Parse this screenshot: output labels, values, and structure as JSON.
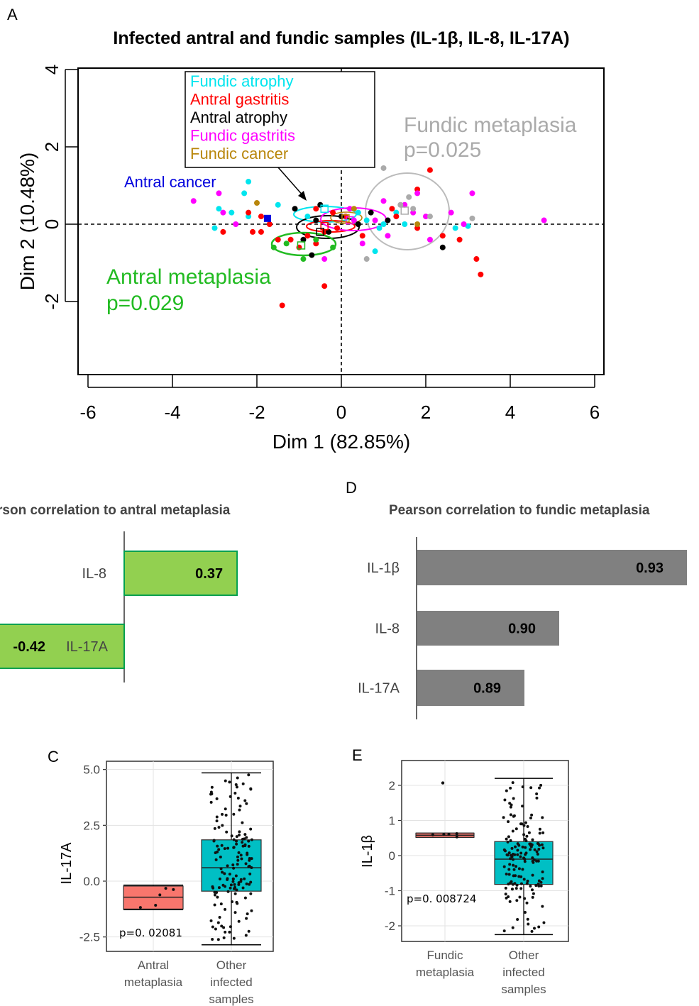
{
  "panel_labels": {
    "a": "A",
    "c": "C",
    "d": "D",
    "e": "E"
  },
  "chart_data": [
    {
      "id": "A",
      "type": "scatter",
      "title": "Infected antral and fundic samples (IL-1β, IL-8, IL-17A)",
      "xlabel": "Dim 1 (82.85%)",
      "ylabel": "Dim 2 (10.48%)",
      "xlim": [
        -6.3,
        6.3
      ],
      "ylim": [
        -3.9,
        4.0
      ],
      "xticks": [
        "-6",
        "-4",
        "-2",
        "0",
        "2",
        "4",
        "6"
      ],
      "yticks": [
        "-2",
        "0",
        "2",
        "4"
      ],
      "legend": {
        "placement": "top-center",
        "entries": [
          {
            "label": "Fundic atrophy",
            "color": "#00e5ee"
          },
          {
            "label": "Antral gastritis",
            "color": "#ff0000"
          },
          {
            "label": "Antral atrophy",
            "color": "#000000"
          },
          {
            "label": "Fundic gastritis",
            "color": "#ff00ff"
          },
          {
            "label": "Fundic cancer",
            "color": "#b8860b"
          }
        ]
      },
      "annotations": {
        "fundic_metaplasia": {
          "label": "Fundic metaplasia",
          "pvalue": "p=0.025",
          "color": "#aaaaaa"
        },
        "antral_metaplasia": {
          "label": "Antral metaplasia",
          "pvalue": "p=0.029",
          "color": "#22bb22"
        },
        "antral_cancer": {
          "label": "Antral cancer",
          "color": "#0000dd"
        }
      },
      "groups": [
        {
          "name": "Fundic atrophy",
          "color": "#00e5ee",
          "center": [
            -0.4,
            0.4
          ],
          "points": [
            [
              -2.3,
              0.8
            ],
            [
              -2.2,
              1.1
            ],
            [
              -2.9,
              0.4
            ],
            [
              -2.6,
              0.3
            ],
            [
              -2.2,
              0.2
            ],
            [
              -3.0,
              -0.1
            ],
            [
              -1.5,
              0.5
            ],
            [
              -0.8,
              0.2
            ],
            [
              0.4,
              0.3
            ],
            [
              0.8,
              -0.7
            ],
            [
              1.0,
              0.0
            ],
            [
              1.3,
              0.3
            ],
            [
              1.5,
              0.0
            ],
            [
              2.7,
              -0.1
            ],
            [
              3.0,
              -0.05
            ],
            [
              0.9,
              -0.1
            ],
            [
              0.6,
              0.1
            ]
          ]
        },
        {
          "name": "Antral gastritis",
          "color": "#ff0000",
          "center": [
            -0.4,
            -0.05
          ],
          "points": [
            [
              -2.8,
              -0.2
            ],
            [
              -2.2,
              0.3
            ],
            [
              -2.1,
              -0.2
            ],
            [
              -1.9,
              0.2
            ],
            [
              -1.9,
              -0.2
            ],
            [
              -1.7,
              0.0
            ],
            [
              -1.5,
              -0.4
            ],
            [
              -1.2,
              -0.4
            ],
            [
              -1.0,
              -0.6
            ],
            [
              -0.8,
              -0.3
            ],
            [
              -0.6,
              0.4
            ],
            [
              -0.6,
              -0.5
            ],
            [
              -0.4,
              -0.2
            ],
            [
              -0.2,
              0.3
            ],
            [
              -0.1,
              -0.1
            ],
            [
              0.1,
              0.2
            ],
            [
              1.2,
              0.4
            ],
            [
              1.3,
              0.2
            ],
            [
              1.8,
              -0.1
            ],
            [
              1.8,
              0.9
            ],
            [
              2.1,
              1.4
            ],
            [
              2.4,
              -0.3
            ],
            [
              2.8,
              -0.4
            ],
            [
              3.2,
              -0.9
            ],
            [
              3.3,
              -1.3
            ],
            [
              -1.4,
              -2.1
            ],
            [
              -0.4,
              -1.6
            ],
            [
              0.5,
              -0.3
            ]
          ]
        },
        {
          "name": "Antral atrophy",
          "color": "#000000",
          "center": [
            -0.5,
            -0.2
          ],
          "points": [
            [
              -1.1,
              0.4
            ],
            [
              -0.9,
              -0.4
            ],
            [
              -0.7,
              -0.8
            ],
            [
              -0.6,
              0.1
            ],
            [
              -0.3,
              -0.2
            ],
            [
              0.0,
              0.2
            ],
            [
              0.4,
              0.0
            ],
            [
              0.7,
              0.3
            ],
            [
              2.4,
              -0.6
            ],
            [
              1.1,
              0.1
            ],
            [
              -0.5,
              0.5
            ]
          ]
        },
        {
          "name": "Fundic gastritis",
          "color": "#ff00ff",
          "center": [
            0.2,
            0.1
          ],
          "points": [
            [
              -3.5,
              0.6
            ],
            [
              -2.9,
              0.8
            ],
            [
              -2.8,
              0.3
            ],
            [
              -2.5,
              0.0
            ],
            [
              -1.5,
              2.2
            ],
            [
              -0.4,
              -0.9
            ],
            [
              0.2,
              0.4
            ],
            [
              0.5,
              -0.5
            ],
            [
              0.8,
              0.1
            ],
            [
              1.1,
              -0.3
            ],
            [
              1.5,
              0.5
            ],
            [
              1.7,
              0.3
            ],
            [
              1.8,
              0.8
            ],
            [
              2.0,
              0.2
            ],
            [
              2.1,
              -0.4
            ],
            [
              2.6,
              0.3
            ],
            [
              2.9,
              0.0
            ],
            [
              3.1,
              0.8
            ],
            [
              4.8,
              0.1
            ],
            [
              1.0,
              0.6
            ],
            [
              0.3,
              0.1
            ]
          ]
        },
        {
          "name": "Fundic cancer",
          "color": "#b8860b",
          "center": [
            0.1,
            0.15
          ],
          "points": [
            [
              -2.0,
              0.55
            ],
            [
              0.3,
              0.4
            ],
            [
              1.8,
              0.0
            ]
          ]
        },
        {
          "name": "Fundic metaplasia",
          "color": "#aaaaaa",
          "center": [
            1.5,
            0.35
          ],
          "points": [
            [
              1.0,
              1.45
            ],
            [
              1.4,
              0.5
            ],
            [
              1.6,
              0.7
            ],
            [
              1.7,
              0.4
            ],
            [
              0.6,
              -0.9
            ],
            [
              3.1,
              0.15
            ],
            [
              2.1,
              0.2
            ]
          ]
        },
        {
          "name": "Antral metaplasia",
          "color": "#22bb22",
          "center": [
            -0.95,
            -0.55
          ],
          "points": [
            [
              -1.6,
              -0.6
            ],
            [
              -1.3,
              -0.5
            ],
            [
              -0.9,
              -0.9
            ],
            [
              -0.6,
              -0.4
            ],
            [
              -0.2,
              -0.6
            ]
          ]
        },
        {
          "name": "Antral cancer",
          "color": "#0000dd",
          "center": [
            -1.75,
            0.15
          ],
          "points": [
            [
              -1.75,
              0.15
            ]
          ]
        }
      ]
    },
    {
      "id": "B",
      "type": "bar",
      "title": "rson correlation to antral metaplasia",
      "categories": [
        "IL-8",
        "IL-17A"
      ],
      "values": [
        0.37,
        -0.42
      ],
      "value_labels": [
        "0.37",
        "-0.42"
      ],
      "color": "#92d050",
      "edge_color": "#00a050"
    },
    {
      "id": "D",
      "type": "bar",
      "title": "Pearson correlation to fundic metaplasia",
      "categories": [
        "IL-1β",
        "IL-8",
        "IL-17A"
      ],
      "values": [
        0.93,
        0.9,
        0.89
      ],
      "value_labels": [
        "0.93",
        "0.90",
        "0.89"
      ],
      "color": "#808080"
    },
    {
      "id": "C",
      "type": "box",
      "ylabel": "IL-17A",
      "ylim": [
        -3.0,
        5.2
      ],
      "yticks": [
        "5.0",
        "2.5",
        "0.0",
        "-2.5"
      ],
      "ytick_values": [
        5.0,
        2.5,
        0.0,
        -2.5
      ],
      "categories": [
        "Antral metaplasia",
        "Other infected samples"
      ],
      "category_lines": [
        [
          "Antral",
          "metaplasia"
        ],
        [
          "Other",
          "infected",
          "samples"
        ]
      ],
      "pvalue": "p=0. 02081",
      "boxes": [
        {
          "name": "Antral metaplasia",
          "color": "#f8766d",
          "min": -1.28,
          "q1": -1.25,
          "median": -0.72,
          "q3": -0.22,
          "max": -0.18
        },
        {
          "name": "Other infected samples",
          "color": "#00bfc4",
          "min": -2.85,
          "q1": -0.45,
          "median": 0.6,
          "q3": 1.85,
          "max": 4.85
        }
      ]
    },
    {
      "id": "E",
      "type": "box",
      "ylabel": "IL-1β",
      "ylim": [
        -2.5,
        2.6
      ],
      "yticks": [
        "2",
        "1",
        "0",
        "-1",
        "-2"
      ],
      "ytick_values": [
        2,
        1,
        0,
        -1,
        -2
      ],
      "categories": [
        "Fundic metaplasia",
        "Other infected samples"
      ],
      "category_lines": [
        [
          "Fundic",
          "metaplasia"
        ],
        [
          "Other",
          "infected",
          "samples"
        ]
      ],
      "pvalue": "p=0. 008724",
      "boxes": [
        {
          "name": "Fundic metaplasia",
          "color": "#f8766d",
          "min": 0.52,
          "q1": 0.52,
          "median": 0.58,
          "q3": 0.64,
          "max": 0.64,
          "outliers": [
            2.07
          ]
        },
        {
          "name": "Other infected samples",
          "color": "#00bfc4",
          "min": -2.25,
          "q1": -0.82,
          "median": -0.1,
          "q3": 0.4,
          "max": 2.2
        }
      ]
    }
  ]
}
